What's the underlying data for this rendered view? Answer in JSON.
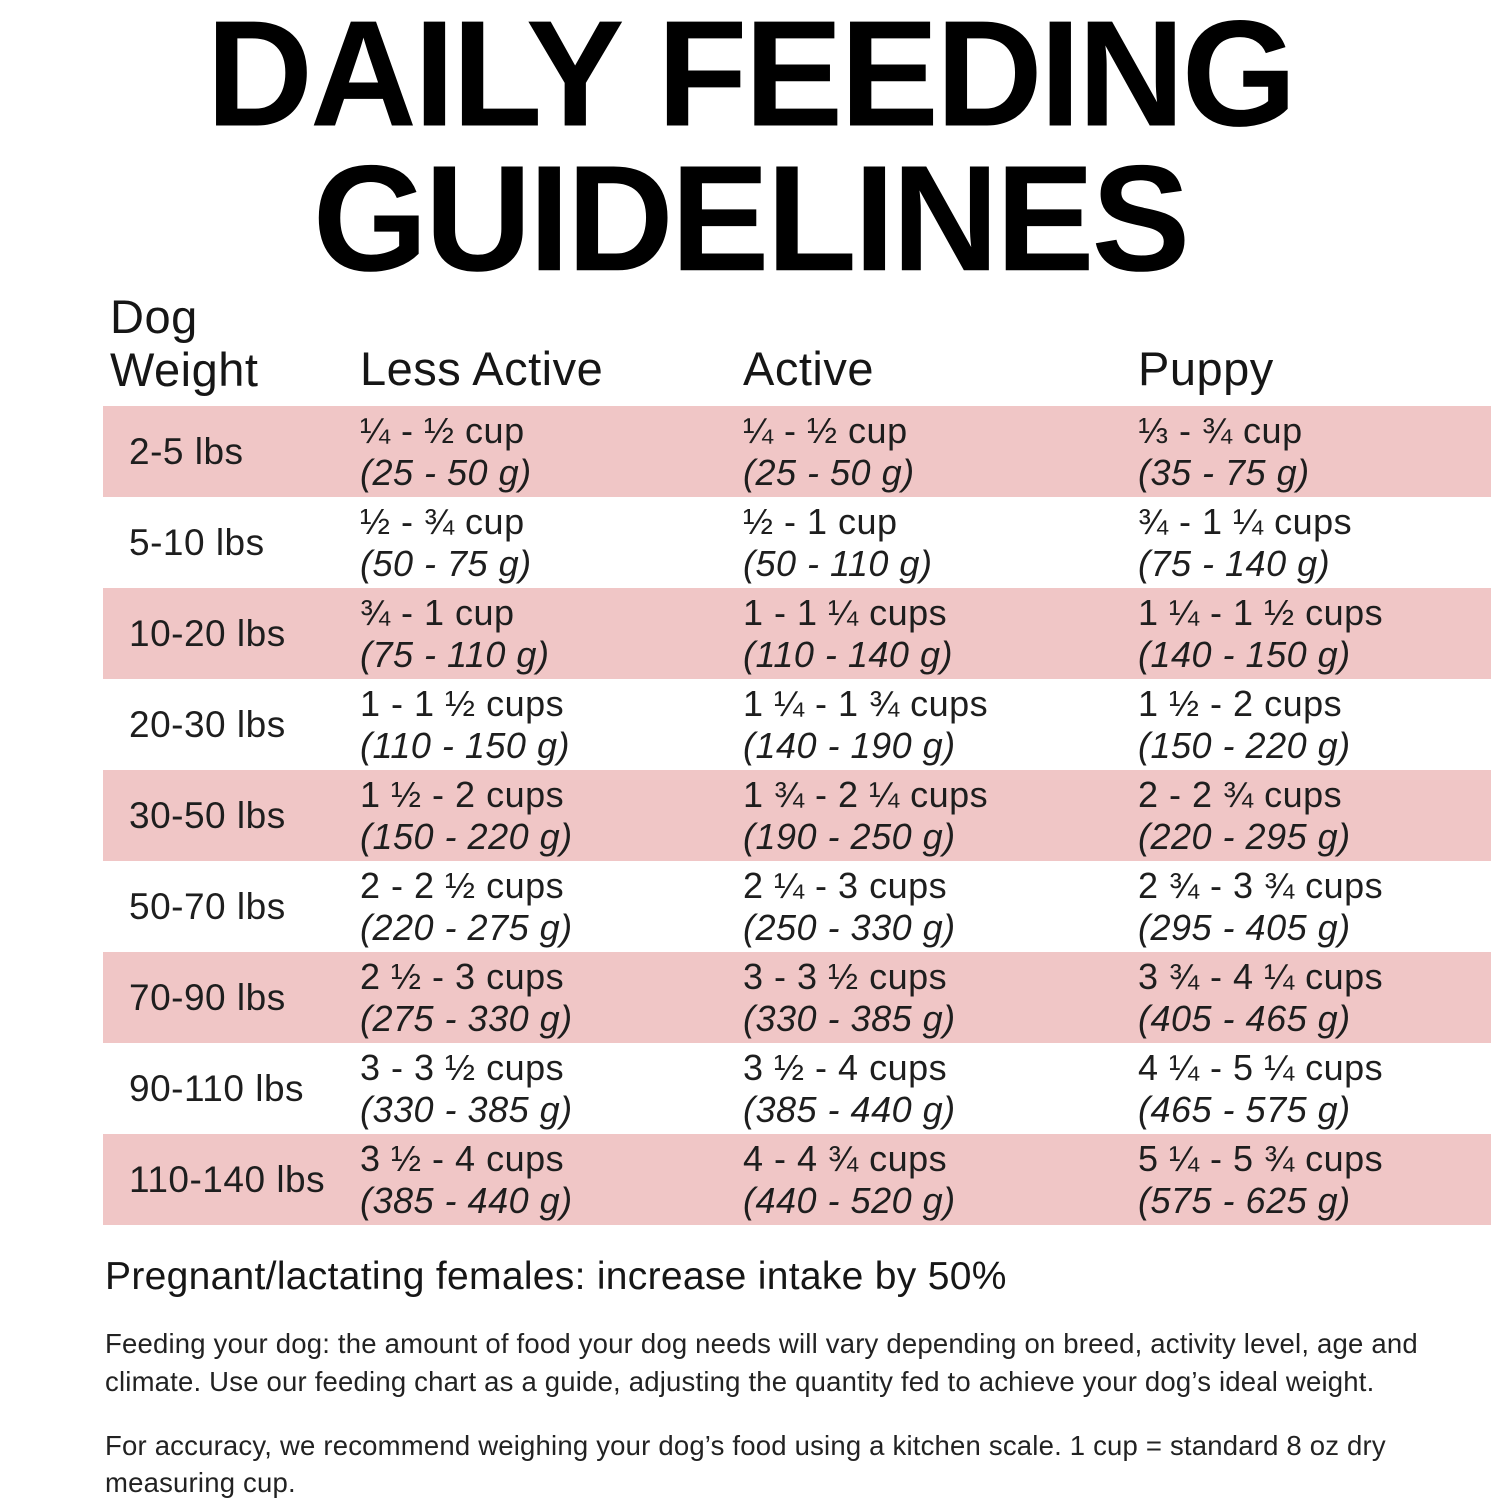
{
  "title": {
    "line1": "DAILY FEEDING",
    "line2": "GUIDELINES"
  },
  "colors": {
    "row_highlight": "#f0c6c6",
    "title": "#000000",
    "text": "#1e1e1e"
  },
  "table": {
    "header": {
      "weight_line1": "Dog",
      "weight_line2": "Weight",
      "less_active": "Less Active",
      "active": "Active",
      "puppy": "Puppy"
    },
    "rows": [
      {
        "weight": "2-5 lbs",
        "less_active": {
          "cups": "¼ - ½ cup",
          "grams": "(25 - 50 g)"
        },
        "active": {
          "cups": "¼ - ½ cup",
          "grams": "(25 - 50 g)"
        },
        "puppy": {
          "cups": "⅓ - ¾ cup",
          "grams": "(35 - 75 g)"
        }
      },
      {
        "weight": "5-10 lbs",
        "less_active": {
          "cups": "½ - ¾ cup",
          "grams": "(50 - 75 g)"
        },
        "active": {
          "cups": "½ - 1 cup",
          "grams": "(50 - 110 g)"
        },
        "puppy": {
          "cups": "¾ - 1 ¼ cups",
          "grams": "(75 - 140 g)"
        }
      },
      {
        "weight": "10-20 lbs",
        "less_active": {
          "cups": "¾ - 1 cup",
          "grams": "(75 - 110 g)"
        },
        "active": {
          "cups": "1 - 1 ¼ cups",
          "grams": "(110 - 140 g)"
        },
        "puppy": {
          "cups": "1 ¼ - 1 ½ cups",
          "grams": "(140 - 150 g)"
        }
      },
      {
        "weight": "20-30 lbs",
        "less_active": {
          "cups": "1 - 1 ½ cups",
          "grams": "(110 - 150 g)"
        },
        "active": {
          "cups": "1 ¼ - 1 ¾ cups",
          "grams": "(140 - 190 g)"
        },
        "puppy": {
          "cups": "1 ½ - 2 cups",
          "grams": "(150 - 220 g)"
        }
      },
      {
        "weight": "30-50 lbs",
        "less_active": {
          "cups": "1 ½ - 2 cups",
          "grams": "(150 - 220 g)"
        },
        "active": {
          "cups": "1 ¾ - 2 ¼ cups",
          "grams": "(190 - 250 g)"
        },
        "puppy": {
          "cups": "2 - 2 ¾ cups",
          "grams": "(220 - 295 g)"
        }
      },
      {
        "weight": "50-70 lbs",
        "less_active": {
          "cups": "2 - 2 ½ cups",
          "grams": "(220 - 275 g)"
        },
        "active": {
          "cups": "2 ¼ - 3 cups",
          "grams": "(250 - 330 g)"
        },
        "puppy": {
          "cups": "2 ¾ - 3 ¾ cups",
          "grams": "(295 - 405 g)"
        }
      },
      {
        "weight": "70-90 lbs",
        "less_active": {
          "cups": "2 ½ - 3 cups",
          "grams": "(275 - 330 g)"
        },
        "active": {
          "cups": "3 - 3 ½ cups",
          "grams": "(330 - 385 g)"
        },
        "puppy": {
          "cups": "3 ¾ - 4 ¼ cups",
          "grams": "(405 - 465 g)"
        }
      },
      {
        "weight": "90-110 lbs",
        "less_active": {
          "cups": "3 - 3 ½ cups",
          "grams": "(330 - 385 g)"
        },
        "active": {
          "cups": "3 ½ - 4 cups",
          "grams": "(385 - 440 g)"
        },
        "puppy": {
          "cups": "4 ¼ - 5 ¼ cups",
          "grams": "(465 - 575 g)"
        }
      },
      {
        "weight": "110-140 lbs",
        "less_active": {
          "cups": "3 ½ - 4 cups",
          "grams": "(385 - 440 g)"
        },
        "active": {
          "cups": "4 - 4 ¾ cups",
          "grams": "(440 - 520 g)"
        },
        "puppy": {
          "cups": "5 ¼ - 5 ¾ cups",
          "grams": "(575 - 625 g)"
        }
      }
    ]
  },
  "notes": {
    "pregnant": "Pregnant/lactating females: increase intake by 50%",
    "feeding": "Feeding your dog: the amount of food your dog needs will vary depending on breed, activity level, age and climate. Use our feeding chart as a guide, adjusting the quantity fed to achieve your dog’s ideal weight.",
    "accuracy": "For accuracy, we recommend weighing your dog’s food using a kitchen scale. 1 cup = standard 8 oz dry measuring cup."
  }
}
